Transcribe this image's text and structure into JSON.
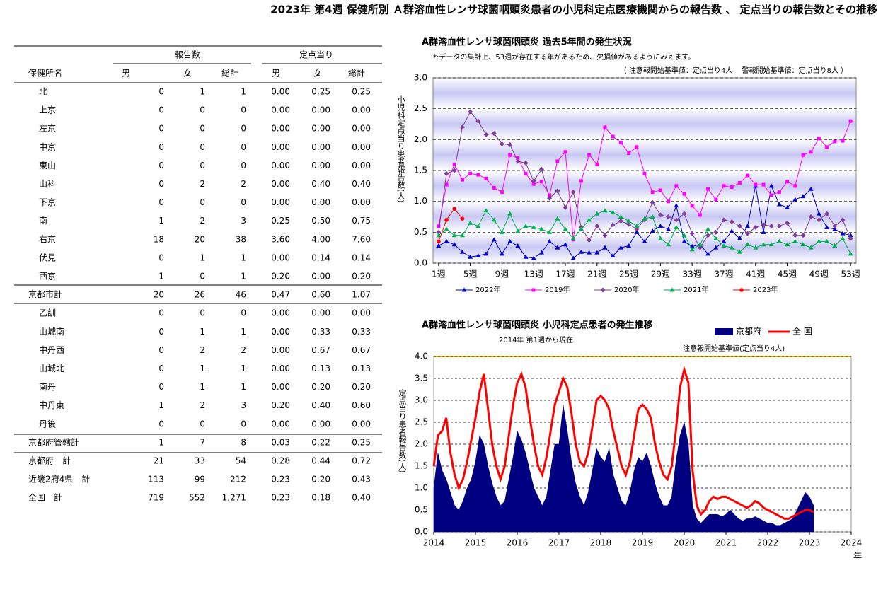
{
  "title": "2023年 第4週 保健所別 Ａ群溶血性レンサ球菌咽頭炎患者の小児科定点医療機関からの報告数 、 定点当りの報告数とその推移",
  "table": {
    "group_headers": [
      "報告数",
      "定点当り"
    ],
    "columns": [
      "保健所名",
      "男",
      "女",
      "総計",
      "男",
      "女",
      "総計"
    ],
    "rows": [
      [
        "北",
        "0",
        "1",
        "1",
        "0.00",
        "0.25",
        "0.25"
      ],
      [
        "上京",
        "0",
        "0",
        "0",
        "0.00",
        "0.00",
        "0.00"
      ],
      [
        "左京",
        "0",
        "0",
        "0",
        "0.00",
        "0.00",
        "0.00"
      ],
      [
        "中京",
        "0",
        "0",
        "0",
        "0.00",
        "0.00",
        "0.00"
      ],
      [
        "東山",
        "0",
        "0",
        "0",
        "0.00",
        "0.00",
        "0.00"
      ],
      [
        "山科",
        "0",
        "2",
        "2",
        "0.00",
        "0.40",
        "0.40"
      ],
      [
        "下京",
        "0",
        "0",
        "0",
        "0.00",
        "0.00",
        "0.00"
      ],
      [
        "南",
        "1",
        "2",
        "3",
        "0.25",
        "0.50",
        "0.75"
      ],
      [
        "右京",
        "18",
        "20",
        "38",
        "3.60",
        "4.00",
        "7.60"
      ],
      [
        "伏見",
        "0",
        "1",
        "1",
        "0.00",
        "0.14",
        "0.14"
      ],
      [
        "西京",
        "1",
        "0",
        "1",
        "0.20",
        "0.00",
        "0.20"
      ],
      [
        "京都市計",
        "20",
        "26",
        "46",
        "0.47",
        "0.60",
        "1.07"
      ],
      [
        "乙訓",
        "0",
        "0",
        "0",
        "0.00",
        "0.00",
        "0.00"
      ],
      [
        "山城南",
        "0",
        "1",
        "1",
        "0.00",
        "0.33",
        "0.33"
      ],
      [
        "中丹西",
        "0",
        "2",
        "2",
        "0.00",
        "0.67",
        "0.67"
      ],
      [
        "山城北",
        "0",
        "1",
        "1",
        "0.00",
        "0.13",
        "0.13"
      ],
      [
        "南丹",
        "0",
        "1",
        "1",
        "0.00",
        "0.20",
        "0.20"
      ],
      [
        "中丹東",
        "1",
        "2",
        "3",
        "0.20",
        "0.40",
        "0.60"
      ],
      [
        "丹後",
        "0",
        "0",
        "0",
        "0.00",
        "0.00",
        "0.00"
      ],
      [
        "京都府管轄計",
        "1",
        "7",
        "8",
        "0.03",
        "0.22",
        "0.25"
      ],
      [
        "京都府　計",
        "21",
        "33",
        "54",
        "0.28",
        "0.44",
        "0.72"
      ],
      [
        "近畿2府4県　計",
        "113",
        "99",
        "212",
        "0.23",
        "0.20",
        "0.43"
      ],
      [
        "全国　計",
        "719",
        "552",
        "1,271",
        "0.23",
        "0.18",
        "0.40"
      ]
    ]
  },
  "chart_data": [
    {
      "type": "line",
      "title": "A群溶血性レンサ球菌咽頭炎 過去5年間の発生状況",
      "note": "*:データの集計上、53週が存在する年があるため、欠損値があるようにみえます。",
      "threshold_note": "（ 注意報開始基準値：定点当り4人　 警報開始基準値：定点当り8人 ）",
      "y_label": "小児科定点当り患者報告数(人)",
      "grid": true,
      "x": [
        1,
        2,
        3,
        4,
        5,
        6,
        7,
        8,
        9,
        10,
        11,
        12,
        13,
        14,
        15,
        16,
        17,
        18,
        19,
        20,
        21,
        22,
        23,
        24,
        25,
        26,
        27,
        28,
        29,
        30,
        31,
        32,
        33,
        34,
        35,
        36,
        37,
        38,
        39,
        40,
        41,
        42,
        43,
        44,
        45,
        46,
        47,
        48,
        49,
        50,
        51,
        52,
        53
      ],
      "xlim": [
        0.3,
        53.7
      ],
      "xticks": [
        {
          "value": 1,
          "label": "1週"
        },
        {
          "value": 5,
          "label": "5週"
        },
        {
          "value": 9,
          "label": "9週"
        },
        {
          "value": 13,
          "label": "13週"
        },
        {
          "value": 17,
          "label": "17週"
        },
        {
          "value": 21,
          "label": "21週"
        },
        {
          "value": 25,
          "label": "25週"
        },
        {
          "value": 29,
          "label": "29週"
        },
        {
          "value": 33,
          "label": "33週"
        },
        {
          "value": 37,
          "label": "37週"
        },
        {
          "value": 41,
          "label": "41週"
        },
        {
          "value": 45,
          "label": "45週"
        },
        {
          "value": 49,
          "label": "49週"
        },
        {
          "value": 53,
          "label": "53週"
        }
      ],
      "ylim": [
        0,
        3
      ],
      "yticks": [
        {
          "value": 0,
          "label": "0.0"
        },
        {
          "value": 0.5,
          "label": "0.5"
        },
        {
          "value": 1,
          "label": "1.0"
        },
        {
          "value": 1.5,
          "label": "1.5"
        },
        {
          "value": 2,
          "label": "2.0"
        },
        {
          "value": 2.5,
          "label": "2.5"
        },
        {
          "value": 3,
          "label": "3.0"
        }
      ],
      "series": [
        {
          "name": "2022年",
          "color": "#0000cc",
          "marker": "triangle",
          "type": "line",
          "values": [
            0.28,
            0.35,
            0.3,
            0.18,
            0.1,
            0.12,
            0.15,
            0.38,
            0.15,
            0.35,
            0.28,
            0.1,
            0.08,
            0.17,
            0.35,
            0.25,
            0.3,
            0.08,
            0.18,
            0.17,
            0.17,
            0.25,
            0.12,
            0.25,
            0.28,
            0.5,
            0.35,
            0.52,
            0.6,
            0.55,
            0.93,
            0.35,
            0.27,
            0.3,
            0.15,
            0.25,
            0.35,
            0.52,
            0.4,
            0.6,
            1.25,
            0.5,
            1.25,
            0.95,
            0.9,
            1.03,
            1.08,
            1.2,
            0.8,
            0.58,
            0.55,
            0.48,
            0.45
          ]
        },
        {
          "name": "2019年",
          "color": "#ff00ff",
          "marker": "square",
          "type": "line",
          "values": [
            0.6,
            1.27,
            1.6,
            1.35,
            1.45,
            1.43,
            1.37,
            1.22,
            1.15,
            1.75,
            1.7,
            1.45,
            1.28,
            1.32,
            1.1,
            1.65,
            1.8,
            0.38,
            1.33,
            1.75,
            1.6,
            2.2,
            2.05,
            1.95,
            1.78,
            1.88,
            1.45,
            1.15,
            1.18,
            1.0,
            1.25,
            1.12,
            0.93,
            0.78,
            1.2,
            1.03,
            1.25,
            1.23,
            1.3,
            1.42,
            1.27,
            1.27,
            1.1,
            1.15,
            1.32,
            1.25,
            1.75,
            1.8,
            2.02,
            1.88,
            1.97,
            1.98,
            2.3
          ]
        },
        {
          "name": "2020年",
          "color": "#7f3f98",
          "marker": "diamond",
          "type": "line",
          "values": [
            0.5,
            1.45,
            1.5,
            2.2,
            2.45,
            2.3,
            2.08,
            2.1,
            1.93,
            1.92,
            1.65,
            1.62,
            1.33,
            1.52,
            1.05,
            1.17,
            0.9,
            1.15,
            0.58,
            0.37,
            0.6,
            0.45,
            0.62,
            0.68,
            0.63,
            0.55,
            0.7,
            0.98,
            0.78,
            0.75,
            0.7,
            0.8,
            0.48,
            0.25,
            0.45,
            0.5,
            0.7,
            0.67,
            0.6,
            0.48,
            0.58,
            0.62,
            0.6,
            0.6,
            0.65,
            0.45,
            0.45,
            0.75,
            0.7,
            0.8,
            0.6,
            0.7,
            0.4
          ]
        },
        {
          "name": "2021年",
          "color": "#00b050",
          "marker": "triangle",
          "type": "line",
          "values": [
            0.45,
            0.55,
            0.45,
            0.45,
            0.65,
            0.6,
            0.85,
            0.7,
            0.5,
            0.8,
            0.52,
            0.6,
            0.58,
            0.55,
            0.5,
            0.72,
            0.55,
            0.4,
            0.55,
            0.7,
            0.8,
            0.85,
            0.82,
            0.75,
            0.68,
            0.6,
            0.72,
            0.75,
            0.4,
            0.3,
            0.58,
            0.45,
            0.22,
            0.3,
            0.55,
            0.4,
            0.28,
            0.25,
            0.18,
            0.3,
            0.25,
            0.3,
            0.3,
            0.35,
            0.3,
            0.35,
            0.3,
            0.25,
            0.35,
            0.35,
            0.28,
            0.4,
            0.15
          ]
        },
        {
          "name": "2023年",
          "color": "#ff0000",
          "marker": "circle",
          "type": "line",
          "values": [
            0.35,
            0.7,
            0.88,
            0.72,
            null,
            null,
            null,
            null,
            null,
            null,
            null,
            null,
            null,
            null,
            null,
            null,
            null,
            null,
            null,
            null,
            null,
            null,
            null,
            null,
            null,
            null,
            null,
            null,
            null,
            null,
            null,
            null,
            null,
            null,
            null,
            null,
            null,
            null,
            null,
            null,
            null,
            null,
            null,
            null,
            null,
            null,
            null,
            null,
            null,
            null,
            null,
            null,
            null
          ]
        }
      ]
    },
    {
      "type": "area",
      "title": "A群溶血性レンサ球菌咽頭炎 小児科定点患者の発生推移",
      "subtitle": "2014年 第1週から現在",
      "threshold_note": "注意報開始基準値(定点当り4人)",
      "y_label": "定点当り患者報告数(人)",
      "x_label": "年",
      "grid": true,
      "xlim": [
        2014,
        2024
      ],
      "xticks": [
        2014,
        2015,
        2016,
        2017,
        2018,
        2019,
        2020,
        2021,
        2022,
        2023,
        2024
      ],
      "ylim": [
        0,
        4
      ],
      "yticks": [
        {
          "value": 0,
          "label": "0.0"
        },
        {
          "value": 0.5,
          "label": "0.5"
        },
        {
          "value": 1,
          "label": "1.0"
        },
        {
          "value": 1.5,
          "label": "1.5"
        },
        {
          "value": 2,
          "label": "2.0"
        },
        {
          "value": 2.5,
          "label": "2.5"
        },
        {
          "value": 3,
          "label": "3.0"
        },
        {
          "value": 3.5,
          "label": "3.5"
        },
        {
          "value": 4,
          "label": "4.0"
        }
      ],
      "x": [
        2014,
        2014.1,
        2014.2,
        2014.3,
        2014.4,
        2014.5,
        2014.6,
        2014.7,
        2014.8,
        2014.9,
        2015,
        2015.1,
        2015.2,
        2015.3,
        2015.4,
        2015.5,
        2015.6,
        2015.7,
        2015.8,
        2015.9,
        2016,
        2016.1,
        2016.2,
        2016.3,
        2016.4,
        2016.5,
        2016.6,
        2016.7,
        2016.8,
        2016.9,
        2017,
        2017.1,
        2017.2,
        2017.3,
        2017.4,
        2017.5,
        2017.6,
        2017.7,
        2017.8,
        2017.9,
        2018,
        2018.1,
        2018.2,
        2018.3,
        2018.4,
        2018.5,
        2018.6,
        2018.7,
        2018.8,
        2018.9,
        2019,
        2019.1,
        2019.2,
        2019.3,
        2019.4,
        2019.5,
        2019.6,
        2019.7,
        2019.8,
        2019.9,
        2020,
        2020.1,
        2020.2,
        2020.3,
        2020.4,
        2020.5,
        2020.6,
        2020.7,
        2020.8,
        2020.9,
        2021,
        2021.1,
        2021.2,
        2021.3,
        2021.4,
        2021.5,
        2021.6,
        2021.7,
        2021.8,
        2021.9,
        2022,
        2022.1,
        2022.2,
        2022.3,
        2022.4,
        2022.5,
        2022.6,
        2022.7,
        2022.8,
        2022.9,
        2023,
        2023.1
      ],
      "series": [
        {
          "name": "京都府",
          "color": "#000080",
          "type": "area",
          "values": [
            1.0,
            1.8,
            1.4,
            1.2,
            0.9,
            0.6,
            0.5,
            0.7,
            1.0,
            1.2,
            1.6,
            2.2,
            2.0,
            1.5,
            1.1,
            0.8,
            0.6,
            0.7,
            1.2,
            1.7,
            2.3,
            2.1,
            1.8,
            1.4,
            1.0,
            0.8,
            0.6,
            0.8,
            1.4,
            2.0,
            2.0,
            2.9,
            2.3,
            1.6,
            1.1,
            0.8,
            0.6,
            0.9,
            1.4,
            1.9,
            1.7,
            1.6,
            1.9,
            1.3,
            1.0,
            0.7,
            0.6,
            0.9,
            1.4,
            1.7,
            1.6,
            1.8,
            1.5,
            1.1,
            0.8,
            0.6,
            0.6,
            0.8,
            1.6,
            2.2,
            2.5,
            2.0,
            0.6,
            0.3,
            0.2,
            0.3,
            0.4,
            0.4,
            0.4,
            0.35,
            0.4,
            0.5,
            0.4,
            0.3,
            0.25,
            0.3,
            0.3,
            0.35,
            0.3,
            0.25,
            0.2,
            0.2,
            0.15,
            0.15,
            0.2,
            0.25,
            0.3,
            0.5,
            0.7,
            0.9,
            0.8,
            0.6
          ]
        },
        {
          "name": "全 国",
          "color": "#ff0000",
          "type": "line",
          "values": [
            1.5,
            2.2,
            2.3,
            2.6,
            1.8,
            1.3,
            1.0,
            1.2,
            1.6,
            2.1,
            2.6,
            3.2,
            3.6,
            2.8,
            2.0,
            1.5,
            1.2,
            1.5,
            2.2,
            2.9,
            3.4,
            3.6,
            3.3,
            2.6,
            2.0,
            1.5,
            1.3,
            1.7,
            2.3,
            2.9,
            3.2,
            3.5,
            3.3,
            2.7,
            2.0,
            1.6,
            1.5,
            1.8,
            2.4,
            3.0,
            3.1,
            3.0,
            2.8,
            2.3,
            1.9,
            1.5,
            1.3,
            1.6,
            2.2,
            2.8,
            2.9,
            2.8,
            2.6,
            2.0,
            1.6,
            1.3,
            1.2,
            1.5,
            2.3,
            3.3,
            3.7,
            3.4,
            1.4,
            0.6,
            0.4,
            0.5,
            0.7,
            0.8,
            0.75,
            0.8,
            0.8,
            0.75,
            0.7,
            0.65,
            0.6,
            0.55,
            0.6,
            0.7,
            0.65,
            0.55,
            0.5,
            0.45,
            0.4,
            0.35,
            0.3,
            0.3,
            0.35,
            0.4,
            0.45,
            0.5,
            0.5,
            0.45
          ]
        }
      ]
    }
  ]
}
